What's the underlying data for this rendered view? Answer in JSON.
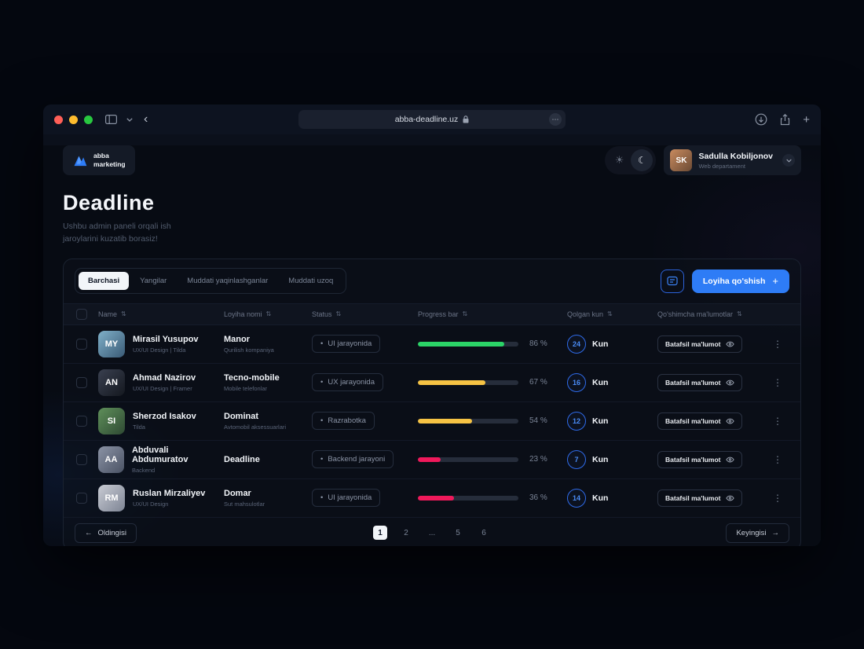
{
  "browser": {
    "url": "abba-deadline.uz"
  },
  "icons": {
    "sun": "☀",
    "moon": "☾",
    "ellipsis": "⋯",
    "plus": "+",
    "back": "‹",
    "dots_vertical": "⋮",
    "arrow_left": "←",
    "arrow_right": "→",
    "sort": "⇅",
    "bullet": "•"
  },
  "header": {
    "logo": {
      "line1": "abba",
      "line2": "marketing"
    },
    "user": {
      "name": "Sadulla Kobiljonov",
      "role": "Web departament",
      "initials": "SK"
    }
  },
  "page": {
    "title": "Deadline",
    "subtitle_line1": "Ushbu admin paneli orqali ish",
    "subtitle_line2": "jaroylarini kuzatib borasiz!"
  },
  "tabs": [
    {
      "label": "Barchasi",
      "active": true
    },
    {
      "label": "Yangilar",
      "active": false
    },
    {
      "label": "Muddati yaqinlashganlar",
      "active": false
    },
    {
      "label": "Muddati uzoq",
      "active": false
    }
  ],
  "toolbar": {
    "add_button": "Loyiha qo'shish"
  },
  "table": {
    "headers": [
      {
        "label": "Name"
      },
      {
        "label": "Loyiha nomi"
      },
      {
        "label": "Status"
      },
      {
        "label": "Progress bar"
      },
      {
        "label": "Qolgan kun"
      },
      {
        "label": "Qo'shimcha ma'lumotlar"
      }
    ],
    "details_label": "Batafsil ma'lumot",
    "rows": [
      {
        "name": "Mirasil Yusupov",
        "role": "UX/UI Design | Tilda",
        "initials": "MY",
        "project": "Manor",
        "project_sub": "Qurilish kompaniya",
        "status": "UI jarayonida",
        "progress": 86,
        "progress_label": "86 %",
        "progress_color": "#2BD467",
        "days": "24",
        "days_label": "Kun"
      },
      {
        "name": "Ahmad Nazirov",
        "role": "UX/UI Design | Framer",
        "initials": "AN",
        "project": "Tecno-mobile",
        "project_sub": "Mobile telefonlar",
        "status": "UX jarayonida",
        "progress": 67,
        "progress_label": "67 %",
        "progress_color": "#F6C344",
        "days": "16",
        "days_label": "Kun"
      },
      {
        "name": "Sherzod Isakov",
        "role": "Tilda",
        "initials": "SI",
        "project": "Dominat",
        "project_sub": "Avtomobil aksessuarlari",
        "status": "Razrabotka",
        "progress": 54,
        "progress_label": "54 %",
        "progress_color": "#F6C344",
        "days": "12",
        "days_label": "Kun"
      },
      {
        "name": "Abduvali Abdumuratov",
        "role": "Backend",
        "initials": "AA",
        "project": "Deadline",
        "project_sub": "",
        "status": "Backend jarayoni",
        "progress": 23,
        "progress_label": "23 %",
        "progress_color": "#F0195B",
        "days": "7",
        "days_label": "Kun"
      },
      {
        "name": "Ruslan Mirzaliyev",
        "role": "UX/UI Design",
        "initials": "RM",
        "project": "Domar",
        "project_sub": "Sut mahsulotlar",
        "status": "UI jarayonida",
        "progress": 36,
        "progress_label": "36 %",
        "progress_color": "#F0195B",
        "days": "14",
        "days_label": "Kun"
      }
    ]
  },
  "pagination": {
    "prev": "Oldingisi",
    "next": "Keyingisi",
    "pages": [
      "1",
      "2",
      "...",
      "5",
      "6"
    ]
  }
}
